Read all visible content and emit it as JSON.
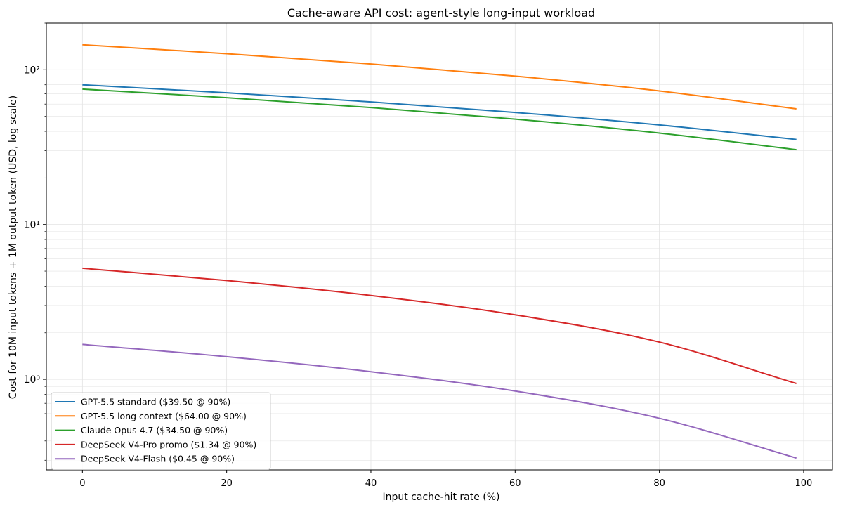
{
  "chart_data": {
    "type": "line",
    "title": "Cache-aware API cost: agent-style long-input workload",
    "xlabel": "Input cache-hit rate (%)",
    "ylabel": "Cost for 10M input tokens + 1M output token (USD, log scale)",
    "xlim": [
      -5,
      104
    ],
    "ylim": [
      0.26,
      200
    ],
    "yscale": "log",
    "grid": true,
    "legend_position": "lower-left",
    "x_ticks": [
      0,
      20,
      40,
      60,
      80,
      100
    ],
    "y_ticks": [
      {
        "value": 1,
        "label": "10⁰"
      },
      {
        "value": 10,
        "label": "10¹"
      },
      {
        "value": 100,
        "label": "10²"
      }
    ],
    "x": [
      0,
      20,
      40,
      60,
      80,
      99
    ],
    "series": [
      {
        "name": "GPT-5.5 standard ($39.50 @ 90%)",
        "color": "#1f77b4",
        "values": [
          80.0,
          71.0,
          62.0,
          53.0,
          44.0,
          35.45
        ]
      },
      {
        "name": "GPT-5.5 long context ($64.00 @ 90%)",
        "color": "#ff7f0e",
        "values": [
          145.0,
          127.0,
          109.0,
          91.0,
          73.0,
          55.9
        ]
      },
      {
        "name": "Claude Opus 4.7 ($34.50 @ 90%)",
        "color": "#2ca02c",
        "values": [
          75.0,
          66.0,
          57.0,
          48.0,
          39.0,
          30.45
        ]
      },
      {
        "name": "DeepSeek V4-Pro promo ($1.34 @ 90%)",
        "color": "#d62728",
        "values": [
          5.22,
          4.35,
          3.48,
          2.61,
          1.74,
          0.94
        ]
      },
      {
        "name": "DeepSeek V4-Flash ($0.45 @ 90%)",
        "color": "#9467bd",
        "values": [
          1.68,
          1.4,
          1.12,
          0.84,
          0.56,
          0.31
        ]
      }
    ]
  }
}
